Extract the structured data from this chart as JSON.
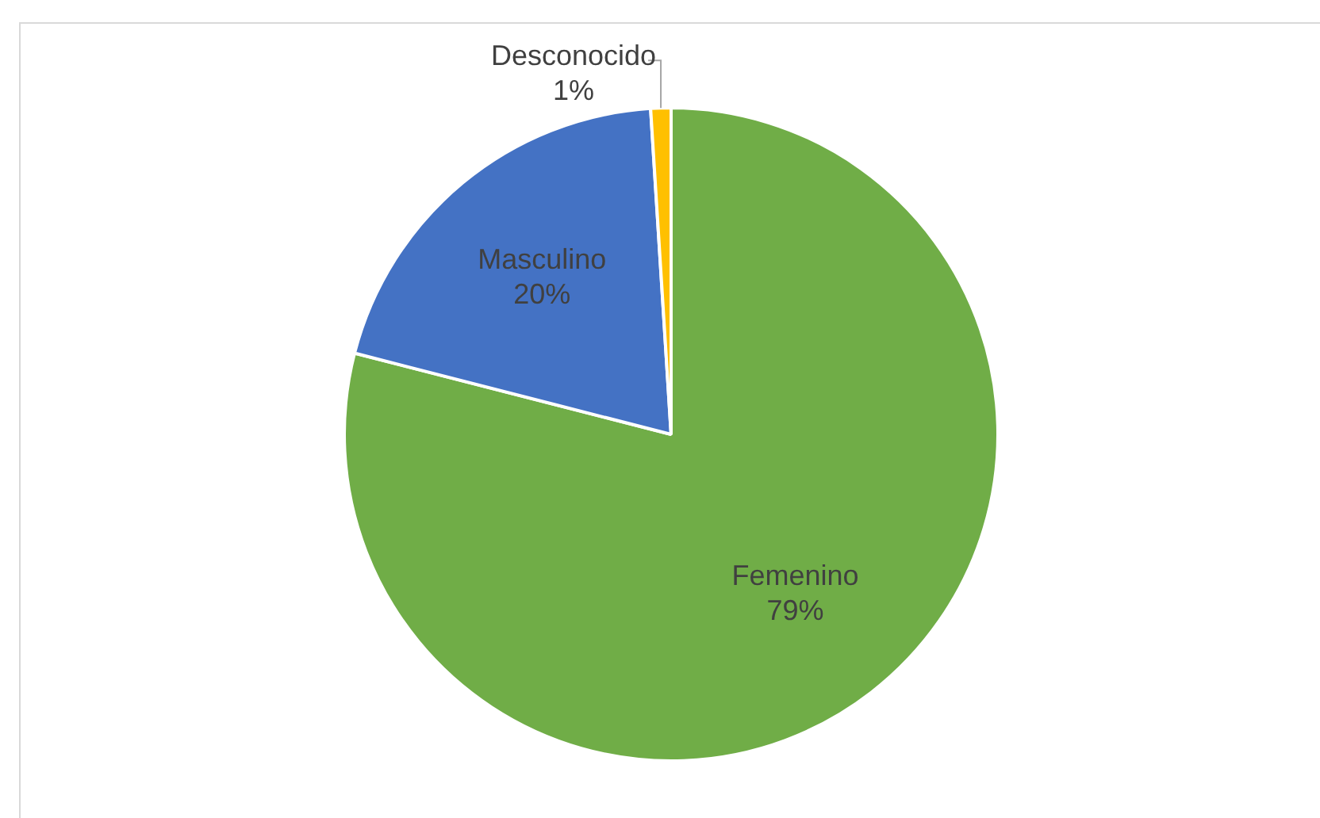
{
  "chart_data": {
    "type": "pie",
    "categories": [
      "Femenino",
      "Masculino",
      "Desconocido"
    ],
    "values": [
      79,
      20,
      1
    ],
    "colors": [
      "#70ad47",
      "#4472c4",
      "#ffc000"
    ],
    "value_labels": [
      "79%",
      "20%",
      "1%"
    ],
    "legend": false
  }
}
